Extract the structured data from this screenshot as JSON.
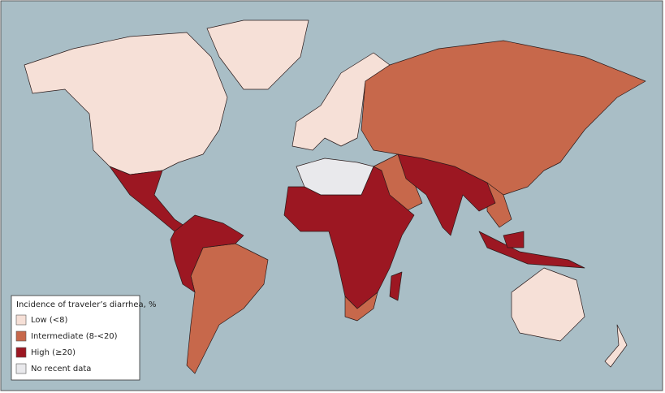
{
  "legend": {
    "title": "Incidence of traveler’s diarrhea, %",
    "items": [
      {
        "label": "Low (<8)",
        "color": "#f6e0d7"
      },
      {
        "label": "Intermediate (8-<20)",
        "color": "#c7684b"
      },
      {
        "label": "High (≥20)",
        "color": "#9c1722"
      },
      {
        "label": "No recent data",
        "color": "#e9e9ec"
      }
    ]
  }
}
